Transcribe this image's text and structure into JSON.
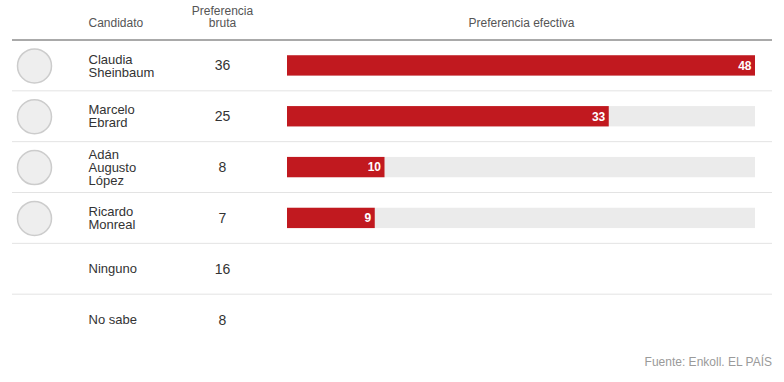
{
  "chart_data": {
    "type": "bar",
    "orientation": "horizontal",
    "category_label": "Candidato",
    "categories": [
      "Claudia Sheinbaum",
      "Marcelo Ebrard",
      "Adán Augusto López",
      "Ricardo Monreal",
      "Ninguno",
      "No sabe"
    ],
    "series": [
      {
        "name": "Preferencia bruta",
        "type": "text",
        "values": [
          36,
          25,
          8,
          7,
          16,
          8
        ]
      },
      {
        "name": "Preferencia efectiva",
        "type": "bar",
        "color": "#c1191f",
        "values": [
          48,
          33,
          10,
          9,
          null,
          null
        ]
      }
    ],
    "xlim": [
      0,
      48
    ],
    "data_labels": true,
    "tick_labels": false,
    "caption": "Fuente: Enkoll. EL PAÍS"
  }
}
